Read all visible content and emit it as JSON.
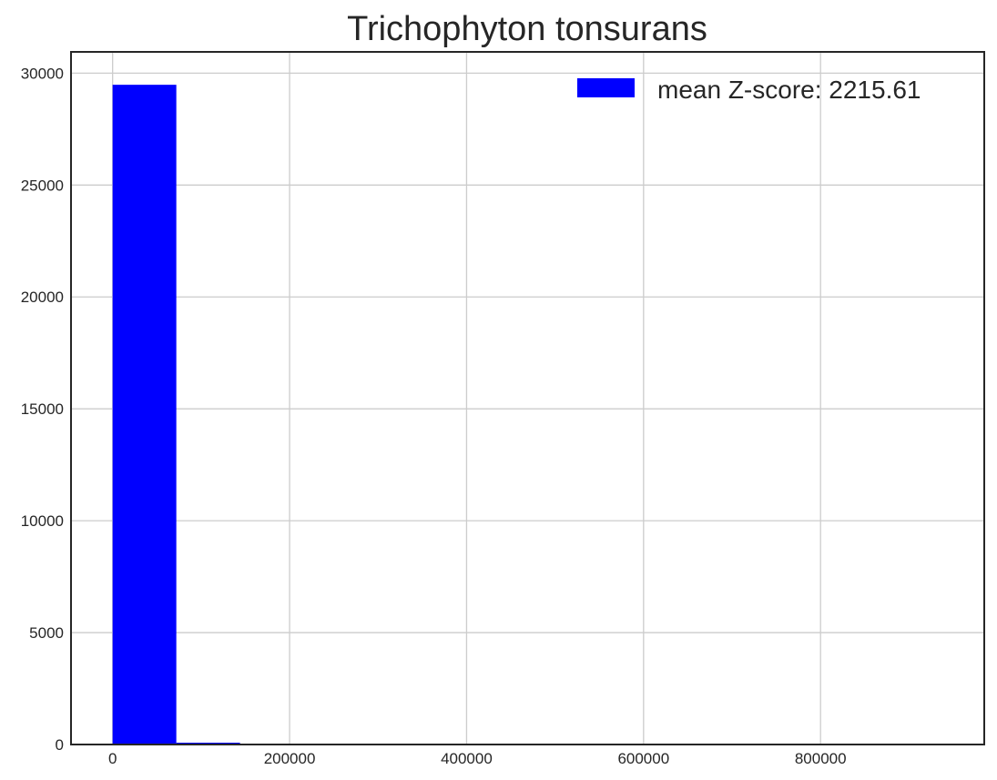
{
  "chart_data": {
    "type": "bar",
    "subtype": "histogram",
    "title": "Trichophyton tonsurans",
    "xlabel": "",
    "ylabel": "",
    "xlim": [
      -47000,
      985000
    ],
    "ylim": [
      0,
      30950
    ],
    "xticks": [
      0,
      200000,
      400000,
      600000,
      800000
    ],
    "xtick_labels": [
      "0",
      "200000",
      "400000",
      "600000",
      "800000"
    ],
    "yticks": [
      0,
      5000,
      10000,
      15000,
      20000,
      25000,
      30000
    ],
    "ytick_labels": [
      "0",
      "5000",
      "10000",
      "15000",
      "20000",
      "25000",
      "30000"
    ],
    "grid": true,
    "bar_color": "#0000ff",
    "legend": {
      "placement": "top-right",
      "entries": [
        {
          "label": "mean Z-score: 2215.61",
          "color": "#0000ff"
        }
      ]
    },
    "series": [
      {
        "name": "mean Z-score: 2215.61",
        "bins": [
          {
            "x0": 0,
            "x1": 72000,
            "count": 29480
          },
          {
            "x0": 72000,
            "x1": 144000,
            "count": 80
          },
          {
            "x0": 144000,
            "x1": 216000,
            "count": 15
          },
          {
            "x0": 216000,
            "x1": 288000,
            "count": 10
          },
          {
            "x0": 288000,
            "x1": 360000,
            "count": 25
          },
          {
            "x0": 360000,
            "x1": 432000,
            "count": 8
          },
          {
            "x0": 432000,
            "x1": 504000,
            "count": 3
          },
          {
            "x0": 504000,
            "x1": 576000,
            "count": 2
          },
          {
            "x0": 576000,
            "x1": 648000,
            "count": 1
          },
          {
            "x0": 648000,
            "x1": 720000,
            "count": 1
          },
          {
            "x0": 720000,
            "x1": 792000,
            "count": 0
          },
          {
            "x0": 792000,
            "x1": 864000,
            "count": 0
          },
          {
            "x0": 864000,
            "x1": 936000,
            "count": 1
          }
        ]
      }
    ]
  }
}
